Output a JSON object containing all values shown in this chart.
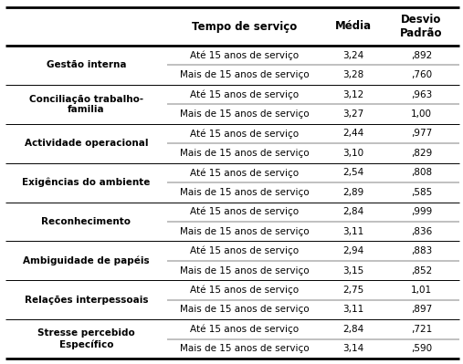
{
  "col_headers": [
    "",
    "Tempo de serviço",
    "Média",
    "Desvio\nPadrão"
  ],
  "groups": [
    {
      "name": "Gestão interna",
      "bold": true,
      "subrows": [
        [
          "Até 15 anos de serviço",
          "3,24",
          ",892"
        ],
        [
          "Mais de 15 anos de serviço",
          "3,28",
          ",760"
        ]
      ]
    },
    {
      "name": "Conciliação trabalho-\nfamilia",
      "bold": true,
      "subrows": [
        [
          "Até 15 anos de serviço",
          "3,12",
          ",963"
        ],
        [
          "Mais de 15 anos de serviço",
          "3,27",
          "1,00"
        ]
      ]
    },
    {
      "name": "Actividade operacional",
      "bold": true,
      "subrows": [
        [
          "Até 15 anos de serviço",
          "2,44",
          ",977"
        ],
        [
          "Mais de 15 anos de serviço",
          "3,10",
          ",829"
        ]
      ]
    },
    {
      "name": "Exigências do ambiente",
      "bold": true,
      "subrows": [
        [
          "Até 15 anos de serviço",
          "2,54",
          ",808"
        ],
        [
          "Mais de 15 anos de serviço",
          "2,89",
          ",585"
        ]
      ]
    },
    {
      "name": "Reconhecimento",
      "bold": true,
      "subrows": [
        [
          "Até 15 anos de serviço",
          "2,84",
          ",999"
        ],
        [
          "Mais de 15 anos de serviço",
          "3,11",
          ",836"
        ]
      ]
    },
    {
      "name": "Ambiguidade de papéis",
      "bold": true,
      "subrows": [
        [
          "Até 15 anos de serviço",
          "2,94",
          ",883"
        ],
        [
          "Mais de 15 anos de serviço",
          "3,15",
          ",852"
        ]
      ]
    },
    {
      "name": "Relações interpessoais",
      "bold": true,
      "subrows": [
        [
          "Até 15 anos de serviço",
          "2,75",
          "1,01"
        ],
        [
          "Mais de 15 anos de serviço",
          "3,11",
          ",897"
        ]
      ]
    },
    {
      "name": "Stresse percebido\nEspecífico",
      "bold": true,
      "subrows": [
        [
          "Até 15 anos de serviço",
          "2,84",
          ",721"
        ],
        [
          "Mais de 15 anos de serviço",
          "3,14",
          ",590"
        ]
      ]
    }
  ],
  "background_color": "#ffffff",
  "font_size": 7.5,
  "header_font_size": 8.5,
  "lw_thick": 2.0,
  "lw_thin": 0.7,
  "lw_inner": 0.35
}
